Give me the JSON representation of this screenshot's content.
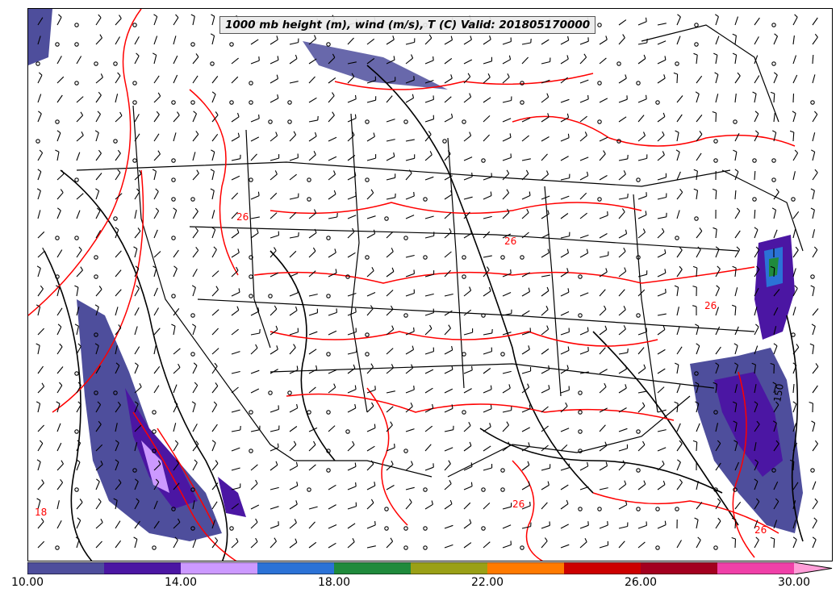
{
  "map": {
    "title": "1000 mb height (m), wind (m/s), T (C) Valid: 201805170000",
    "contour_labels": [
      "26",
      "26",
      "26",
      "18",
      "150",
      "26",
      "26"
    ]
  },
  "colorbar": {
    "bins": [
      {
        "from": 10,
        "to": 12,
        "color": "#4e4e9c"
      },
      {
        "from": 12,
        "to": 14,
        "color": "#4b16a3"
      },
      {
        "from": 14,
        "to": 16,
        "color": "#cc99ff"
      },
      {
        "from": 16,
        "to": 18,
        "color": "#2b72d6"
      },
      {
        "from": 18,
        "to": 20,
        "color": "#1f8a3c"
      },
      {
        "from": 20,
        "to": 22,
        "color": "#9aa016"
      },
      {
        "from": 22,
        "to": 24,
        "color": "#ff7a00"
      },
      {
        "from": 24,
        "to": 26,
        "color": "#cc0000"
      },
      {
        "from": 26,
        "to": 28,
        "color": "#a3001f"
      },
      {
        "from": 28,
        "to": 30,
        "color": "#f040a8"
      }
    ],
    "extend_color": "#ff9ed8",
    "tick_labels": [
      "10.00",
      "14.00",
      "18.00",
      "22.00",
      "26.00",
      "30.00"
    ]
  }
}
